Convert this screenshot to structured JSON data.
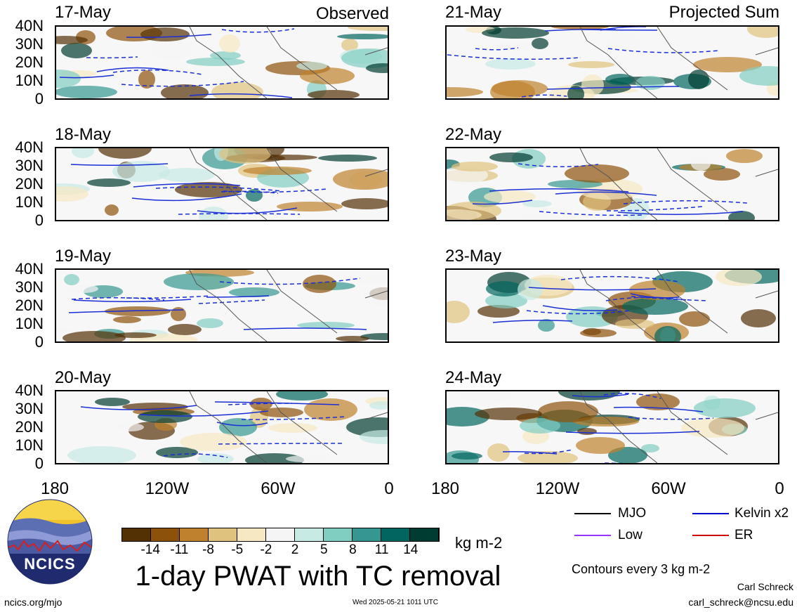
{
  "panels": {
    "observed": [
      {
        "date": "17-May",
        "label": "Observed"
      },
      {
        "date": "18-May",
        "label": ""
      },
      {
        "date": "19-May",
        "label": ""
      },
      {
        "date": "20-May",
        "label": ""
      }
    ],
    "projected": [
      {
        "date": "21-May",
        "label": "Projected Sum"
      },
      {
        "date": "22-May",
        "label": ""
      },
      {
        "date": "23-May",
        "label": ""
      },
      {
        "date": "24-May",
        "label": ""
      }
    ]
  },
  "lat_labels": [
    "40N",
    "30N",
    "20N",
    "10N",
    "0"
  ],
  "lon_labels": [
    "180",
    "120W",
    "60W",
    "0"
  ],
  "colorbar": {
    "labels": [
      "-14",
      "-11",
      "-8",
      "-5",
      "-2",
      "2",
      "5",
      "8",
      "11",
      "14"
    ],
    "colors": [
      "#543005",
      "#8c510a",
      "#bf812d",
      "#dfc27d",
      "#f6e8c3",
      "#f5f5f5",
      "#c7eae5",
      "#80cdc1",
      "#35978f",
      "#01665e",
      "#003c30"
    ],
    "units": "kg m-2"
  },
  "title": "1-day PWAT with TC removal",
  "legend": {
    "items": [
      {
        "label": "MJO",
        "color": "#000000"
      },
      {
        "label": "Kelvin x2",
        "color": "#0000cc"
      },
      {
        "label": "Low",
        "color": "#9933ff"
      },
      {
        "label": "ER",
        "color": "#cc0000"
      }
    ],
    "contours": "Contours every 3 kg m-2"
  },
  "footer": {
    "left": "ncics.org/mjo",
    "center": "Wed 2025-05-21 1011 UTC",
    "author": "Carl Schreck",
    "email": "carl_schreck@ncsu.edu"
  },
  "logo": {
    "text": "NCICS"
  }
}
